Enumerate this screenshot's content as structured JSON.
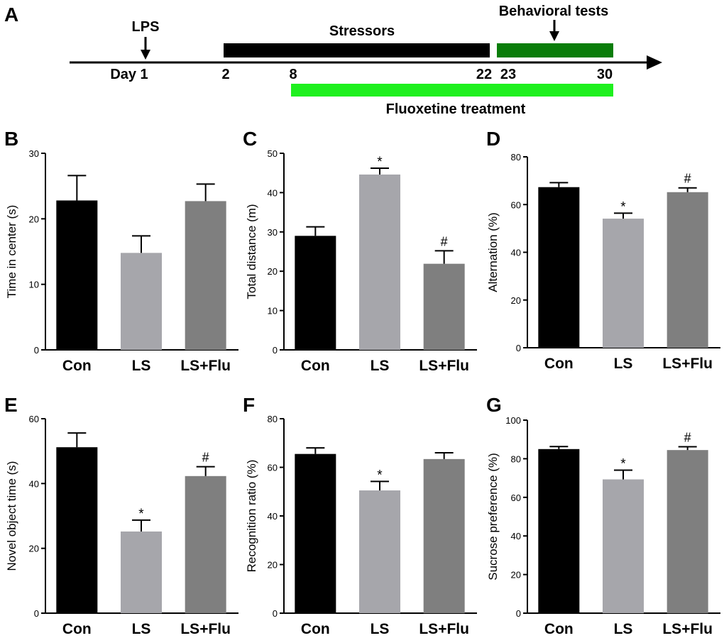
{
  "timeline": {
    "panel": "A",
    "lps": "LPS",
    "stressors": "Stressors",
    "behavioral": "Behavioral tests",
    "fluoxetine": "Fluoxetine treatment",
    "day1": "Day 1",
    "d2": "2",
    "d8": "8",
    "d22": "22",
    "d23": "23",
    "d30": "30",
    "colors": {
      "stressors": "#000000",
      "behavioral": "#0a7d0a",
      "fluoxetine": "#1ef01e"
    }
  },
  "bar_colors": [
    "#000000",
    "#a6a6ab",
    "#7f7f7f"
  ],
  "chart_data": [
    {
      "panel": "B",
      "type": "bar",
      "ylabel": "Time in center (s)",
      "categories": [
        "Con",
        "LS",
        "LS+Flu"
      ],
      "values": [
        22.8,
        14.8,
        22.7
      ],
      "errors": [
        3.8,
        2.6,
        2.6
      ],
      "markers": [
        "",
        "",
        ""
      ],
      "ylim": [
        0,
        30
      ],
      "yticks": [
        0,
        10,
        20,
        30
      ]
    },
    {
      "panel": "C",
      "type": "bar",
      "ylabel": "Total distance (m)",
      "categories": [
        "Con",
        "LS",
        "LS+Flu"
      ],
      "values": [
        29.0,
        44.6,
        21.9
      ],
      "errors": [
        2.3,
        1.6,
        3.3
      ],
      "markers": [
        "",
        "*",
        "#"
      ],
      "ylim": [
        0,
        50
      ],
      "yticks": [
        0,
        10,
        20,
        30,
        40,
        50
      ]
    },
    {
      "panel": "D",
      "type": "bar",
      "ylabel": "Alternation (%)",
      "categories": [
        "Con",
        "LS",
        "LS+Flu"
      ],
      "values": [
        67.3,
        54.1,
        65.2
      ],
      "errors": [
        1.9,
        2.3,
        1.8
      ],
      "markers": [
        "",
        "*",
        "#"
      ],
      "ylim": [
        0,
        80
      ],
      "yticks": [
        0,
        20,
        40,
        60,
        80
      ]
    },
    {
      "panel": "E",
      "type": "bar",
      "ylabel": "Novel object time (s)",
      "categories": [
        "Con",
        "LS",
        "LS+Flu"
      ],
      "values": [
        51.2,
        25.2,
        42.3
      ],
      "errors": [
        4.4,
        3.5,
        2.9
      ],
      "markers": [
        "",
        "*",
        "#"
      ],
      "ylim": [
        0,
        60
      ],
      "yticks": [
        0,
        20,
        40,
        60
      ]
    },
    {
      "panel": "F",
      "type": "bar",
      "ylabel": "Recognition ratio (%)",
      "categories": [
        "Con",
        "LS",
        "LS+Flu"
      ],
      "values": [
        65.5,
        50.5,
        63.4
      ],
      "errors": [
        2.5,
        3.7,
        2.6
      ],
      "markers": [
        "",
        "*",
        ""
      ],
      "ylim": [
        0,
        80
      ],
      "yticks": [
        0,
        20,
        40,
        60,
        80
      ]
    },
    {
      "panel": "G",
      "type": "bar",
      "ylabel": "Sucrose preference (%)",
      "categories": [
        "Con",
        "LS",
        "LS+Flu"
      ],
      "values": [
        85.0,
        69.3,
        84.5
      ],
      "errors": [
        1.3,
        4.8,
        1.7
      ],
      "markers": [
        "",
        "*",
        "#"
      ],
      "ylim": [
        0,
        100
      ],
      "yticks": [
        0,
        20,
        40,
        60,
        80,
        100
      ]
    }
  ]
}
